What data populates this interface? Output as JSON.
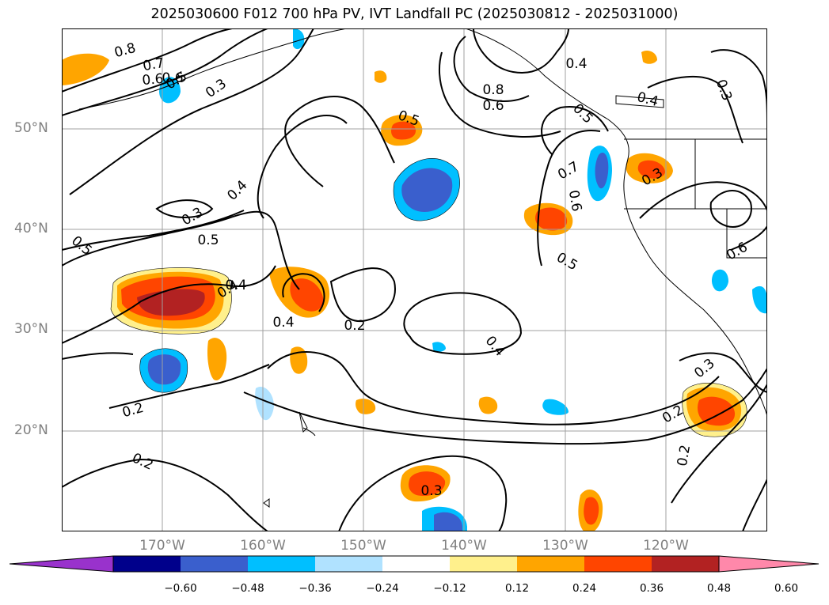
{
  "title": "2025030600 F012 700 hPa PV, IVT Landfall PC (2025030812 - 2025031000)",
  "lat_labels": [
    "50°N",
    "40°N",
    "30°N",
    "20°N"
  ],
  "lon_labels": [
    "170°W",
    "160°W",
    "150°W",
    "140°W",
    "130°W",
    "120°W"
  ],
  "colorbar": {
    "ticks": [
      "−0.60",
      "−0.48",
      "−0.36",
      "−0.24",
      "−0.12",
      "0.12",
      "0.24",
      "0.36",
      "0.48",
      "0.60"
    ],
    "colors": [
      "#9932cc",
      "#00008b",
      "#3a5fcd",
      "#00bfff",
      "#b0e2ff",
      "#ffffff",
      "#fff08c",
      "#ffa500",
      "#ff4500",
      "#b22222",
      "#ff88aa"
    ]
  },
  "contour_labels": [
    "0.8",
    "0.7",
    "0.6",
    "0.5",
    "0.3",
    "0.6",
    "0.4",
    "0.3",
    "0.5",
    "0.5",
    "0.4",
    "0.2",
    "0.4",
    "0.4",
    "0.2",
    "0.2",
    "0.8",
    "0.6",
    "0.4",
    "0.5",
    "0.7",
    "0.6",
    "0.5",
    "0.4",
    "0.3",
    "0.3",
    "0.4",
    "0.6",
    "0.3",
    "0.2",
    "0.2",
    "0.3",
    "0.5"
  ],
  "map": {
    "lon_range": [
      -180,
      -110
    ],
    "lat_range": [
      10,
      60
    ],
    "grid": true
  }
}
